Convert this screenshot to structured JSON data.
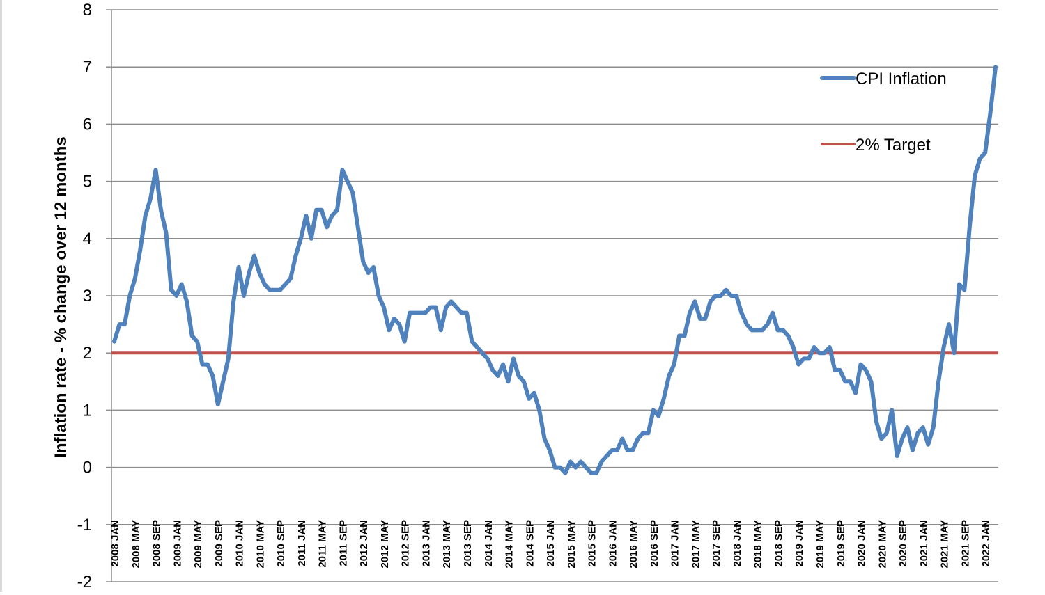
{
  "chart_data": {
    "type": "line",
    "title": "",
    "xlabel": "",
    "ylabel": "Inflation rate  - % change over 12 months",
    "ylim": [
      -2,
      8
    ],
    "yticks": [
      "8",
      "7",
      "6",
      "5",
      "4",
      "3",
      "2",
      "1",
      "0",
      "-1",
      "-2"
    ],
    "grid": true,
    "legend_position": "top-right",
    "x_tick_labels": [
      "2008 JAN",
      "2008 MAY",
      "2008 SEP",
      "2009 JAN",
      "2009 MAY",
      "2009 SEP",
      "2010 JAN",
      "2010 MAY",
      "2010 SEP",
      "2011 JAN",
      "2011 MAY",
      "2011 SEP",
      "2012 JAN",
      "2012 MAY",
      "2012 SEP",
      "2013 JAN",
      "2013 MAY",
      "2013 SEP",
      "2014 JAN",
      "2014 MAY",
      "2014 SEP",
      "2015 JAN",
      "2015 MAY",
      "2015 SEP",
      "2016 JAN",
      "2016 MAY",
      "2016 SEP",
      "2017 JAN",
      "2017 MAY",
      "2017 SEP",
      "2018 JAN",
      "2018 MAY",
      "2018 SEP",
      "2019 JAN",
      "2019 MAY",
      "2019 SEP",
      "2020 JAN",
      "2020 MAY",
      "2020 SEP",
      "2021 JAN",
      "2021 MAY",
      "2021 SEP",
      "2022 JAN"
    ],
    "series": [
      {
        "name": "CPI Inflation",
        "color": "#4f81bd",
        "values": [
          2.2,
          2.5,
          2.5,
          3.0,
          3.3,
          3.8,
          4.4,
          4.7,
          5.2,
          4.5,
          4.1,
          3.1,
          3.0,
          3.2,
          2.9,
          2.3,
          2.2,
          1.8,
          1.8,
          1.6,
          1.1,
          1.5,
          1.9,
          2.9,
          3.5,
          3.0,
          3.4,
          3.7,
          3.4,
          3.2,
          3.1,
          3.1,
          3.1,
          3.2,
          3.3,
          3.7,
          4.0,
          4.4,
          4.0,
          4.5,
          4.5,
          4.2,
          4.4,
          4.5,
          5.2,
          5.0,
          4.8,
          4.2,
          3.6,
          3.4,
          3.5,
          3.0,
          2.8,
          2.4,
          2.6,
          2.5,
          2.2,
          2.7,
          2.7,
          2.7,
          2.7,
          2.8,
          2.8,
          2.4,
          2.8,
          2.9,
          2.8,
          2.7,
          2.7,
          2.2,
          2.1,
          2.0,
          1.9,
          1.7,
          1.6,
          1.8,
          1.5,
          1.9,
          1.6,
          1.5,
          1.2,
          1.3,
          1.0,
          0.5,
          0.3,
          0.0,
          0.0,
          -0.1,
          0.1,
          0.0,
          0.1,
          0.0,
          -0.1,
          -0.1,
          0.1,
          0.2,
          0.3,
          0.3,
          0.5,
          0.3,
          0.3,
          0.5,
          0.6,
          0.6,
          1.0,
          0.9,
          1.2,
          1.6,
          1.8,
          2.3,
          2.3,
          2.7,
          2.9,
          2.6,
          2.6,
          2.9,
          3.0,
          3.0,
          3.1,
          3.0,
          3.0,
          2.7,
          2.5,
          2.4,
          2.4,
          2.4,
          2.5,
          2.7,
          2.4,
          2.4,
          2.3,
          2.1,
          1.8,
          1.9,
          1.9,
          2.1,
          2.0,
          2.0,
          2.1,
          1.7,
          1.7,
          1.5,
          1.5,
          1.3,
          1.8,
          1.7,
          1.5,
          0.8,
          0.5,
          0.6,
          1.0,
          0.2,
          0.5,
          0.7,
          0.3,
          0.6,
          0.7,
          0.4,
          0.7,
          1.5,
          2.1,
          2.5,
          2.0,
          3.2,
          3.1,
          4.2,
          5.1,
          5.4,
          5.5,
          6.2,
          7.0
        ]
      },
      {
        "name": "2% Target",
        "color": "#c0504d",
        "values": [
          2,
          2
        ]
      }
    ]
  }
}
